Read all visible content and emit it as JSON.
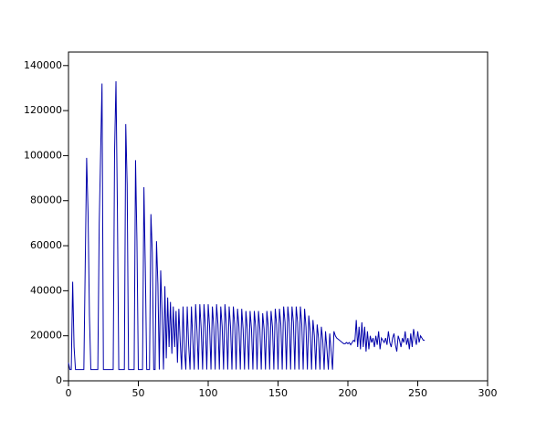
{
  "chart_data": {
    "type": "line",
    "color": "#0000aa",
    "xlim": [
      0,
      300
    ],
    "xticks": [
      0,
      50,
      100,
      150,
      200,
      250,
      300
    ],
    "ylim": [
      0,
      146000
    ],
    "yticks": [
      0,
      20000,
      40000,
      60000,
      80000,
      100000,
      120000,
      140000
    ],
    "x": [
      0,
      1,
      2,
      3,
      4,
      5,
      6,
      7,
      8,
      9,
      10,
      11,
      12,
      13,
      14,
      15,
      16,
      17,
      18,
      19,
      20,
      21,
      22,
      23,
      24,
      25,
      26,
      27,
      28,
      29,
      30,
      31,
      32,
      33,
      34,
      35,
      36,
      37,
      38,
      39,
      40,
      41,
      42,
      43,
      44,
      45,
      46,
      47,
      48,
      49,
      50,
      51,
      52,
      53,
      54,
      55,
      56,
      57,
      58,
      59,
      60,
      61,
      62,
      63,
      64,
      65,
      66,
      67,
      68,
      69,
      70,
      71,
      72,
      73,
      74,
      75,
      76,
      77,
      78,
      79,
      80,
      81,
      82,
      83,
      84,
      85,
      86,
      87,
      88,
      89,
      90,
      91,
      92,
      93,
      94,
      95,
      96,
      97,
      98,
      99,
      100,
      101,
      102,
      103,
      104,
      105,
      106,
      107,
      108,
      109,
      110,
      111,
      112,
      113,
      114,
      115,
      116,
      117,
      118,
      119,
      120,
      121,
      122,
      123,
      124,
      125,
      126,
      127,
      128,
      129,
      130,
      131,
      132,
      133,
      134,
      135,
      136,
      137,
      138,
      139,
      140,
      141,
      142,
      143,
      144,
      145,
      146,
      147,
      148,
      149,
      150,
      151,
      152,
      153,
      154,
      155,
      156,
      157,
      158,
      159,
      160,
      161,
      162,
      163,
      164,
      165,
      166,
      167,
      168,
      169,
      170,
      171,
      172,
      173,
      174,
      175,
      176,
      177,
      178,
      179,
      180,
      181,
      182,
      183,
      184,
      185,
      186,
      187,
      188,
      189,
      190,
      191,
      192,
      193,
      194,
      195,
      196,
      197,
      198,
      199,
      200,
      201,
      202,
      203,
      204,
      205,
      206,
      207,
      208,
      209,
      210,
      211,
      212,
      213,
      214,
      215,
      216,
      217,
      218,
      219,
      220,
      221,
      222,
      223,
      224,
      225,
      226,
      227,
      228,
      229,
      230,
      231,
      232,
      233,
      234,
      235,
      236,
      237,
      238,
      239,
      240,
      241,
      242,
      243,
      244,
      245,
      246,
      247,
      248,
      249,
      250,
      251,
      252,
      253,
      254,
      255
    ],
    "values": [
      8000,
      5000,
      5000,
      44000,
      15000,
      5000,
      5000,
      5000,
      5000,
      5000,
      5000,
      5000,
      52000,
      99000,
      75000,
      29000,
      5000,
      5000,
      5000,
      5000,
      5000,
      5000,
      70000,
      101000,
      132000,
      5000,
      5000,
      5000,
      5000,
      5000,
      5000,
      5000,
      5000,
      102000,
      133000,
      77000,
      5000,
      5000,
      5000,
      5000,
      5000,
      114000,
      87000,
      5000,
      5000,
      5000,
      5000,
      5000,
      98000,
      62000,
      5000,
      5000,
      5000,
      5000,
      86000,
      50000,
      5000,
      5000,
      5000,
      74000,
      57000,
      5000,
      5000,
      62000,
      43000,
      5000,
      49000,
      30000,
      5000,
      42000,
      10000,
      37000,
      15000,
      35000,
      12000,
      33000,
      15000,
      31000,
      8000,
      32000,
      17000,
      5000,
      33000,
      14000,
      5000,
      33000,
      16000,
      5000,
      33000,
      18000,
      5000,
      34000,
      22000,
      5000,
      34000,
      23000,
      5000,
      34000,
      24000,
      5000,
      34000,
      24000,
      5000,
      33000,
      24000,
      5000,
      34000,
      25000,
      5000,
      33000,
      24000,
      5000,
      34000,
      25000,
      5000,
      33000,
      24000,
      5000,
      33000,
      25000,
      5000,
      32000,
      24000,
      5000,
      32000,
      23000,
      5000,
      31000,
      23000,
      5000,
      31000,
      23000,
      5000,
      31000,
      24000,
      5000,
      31000,
      23000,
      5000,
      30000,
      23000,
      5000,
      31000,
      24000,
      5000,
      31000,
      24000,
      5000,
      32000,
      25000,
      5000,
      32000,
      25000,
      5000,
      33000,
      26000,
      5000,
      33000,
      26000,
      5000,
      33000,
      26000,
      5000,
      33000,
      26000,
      5000,
      33000,
      25000,
      5000,
      32000,
      24000,
      5000,
      29000,
      22000,
      5000,
      27000,
      20000,
      5000,
      25000,
      19000,
      5000,
      24000,
      18000,
      5000,
      22000,
      14000,
      5000,
      21000,
      13000,
      5000,
      22000,
      20000,
      19000,
      18500,
      18000,
      17500,
      17000,
      16500,
      16500,
      17000,
      16500,
      17000,
      16000,
      17000,
      18000,
      17500,
      27000,
      15000,
      24000,
      14000,
      26000,
      15000,
      24000,
      13000,
      22000,
      14000,
      20000,
      17000,
      19000,
      15000,
      20000,
      16000,
      22000,
      14000,
      19000,
      18000,
      17000,
      19000,
      16000,
      22000,
      17000,
      15000,
      19000,
      21000,
      16000,
      13000,
      20000,
      18000,
      15000,
      19000,
      17000,
      22000,
      16000,
      19000,
      14000,
      21000,
      15000,
      23000,
      19000,
      16000,
      22000,
      17000,
      20000,
      19000,
      18000,
      18000
    ]
  }
}
